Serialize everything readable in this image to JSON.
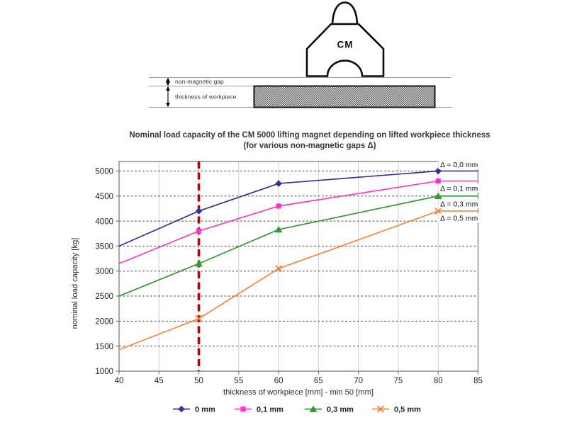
{
  "diagram": {
    "magnet_label": "CM",
    "gap_label": "non-magnetic gap",
    "thickness_label": "thickness of workpiece"
  },
  "chart": {
    "title_line1": "Nominal load capacity of the CM 5000 lifting magnet depending on lifted workpiece thickness",
    "title_line2": "(for various non-magnetic gaps Δ)",
    "xlabel": "thickness of workpiece [mm] - min 50 [mm]",
    "ylabel": "nominal load capacity [kg]"
  },
  "chart_data": {
    "type": "line",
    "title": "Nominal load capacity of the CM 5000 lifting magnet depending on lifted workpiece thickness (for various non-magnetic gaps Δ)",
    "xlabel": "thickness of workpiece [mm] - min 50 [mm]",
    "ylabel": "nominal load capacity [kg]",
    "x": [
      40,
      50,
      60,
      80,
      85
    ],
    "marker_x": [
      50,
      60,
      80
    ],
    "series": [
      {
        "name": "0 mm",
        "annotation": "Δ = 0,0 mm",
        "color": "#333399",
        "marker": "diamond",
        "values": [
          3500,
          4200,
          4750,
          5000,
          5000
        ]
      },
      {
        "name": "0,1 mm",
        "annotation": "Δ = 0,1 mm",
        "color": "#FF33CC",
        "marker": "square",
        "values": [
          3150,
          3800,
          4300,
          4800,
          4800
        ]
      },
      {
        "name": "0,3 mm",
        "annotation": "Δ = 0,3 mm",
        "color": "#339933",
        "marker": "triangle",
        "values": [
          2500,
          3150,
          3830,
          4500,
          4500
        ]
      },
      {
        "name": "0,5 mm",
        "annotation": "Δ = 0,5 mm",
        "color": "#F5843C",
        "marker": "x",
        "values": [
          1430,
          2050,
          3050,
          4200,
          4200
        ]
      }
    ],
    "xticks": [
      40,
      45,
      50,
      55,
      60,
      65,
      70,
      75,
      80,
      85
    ],
    "yticks": [
      1000,
      1500,
      2000,
      2500,
      3000,
      3500,
      4000,
      4500,
      5000
    ],
    "xlim": [
      40,
      85
    ],
    "ylim": [
      1000,
      5190
    ],
    "reference_line": {
      "x": 50,
      "color": "#C00000",
      "style": "dashed"
    },
    "grid": true,
    "legend_position": "bottom"
  }
}
